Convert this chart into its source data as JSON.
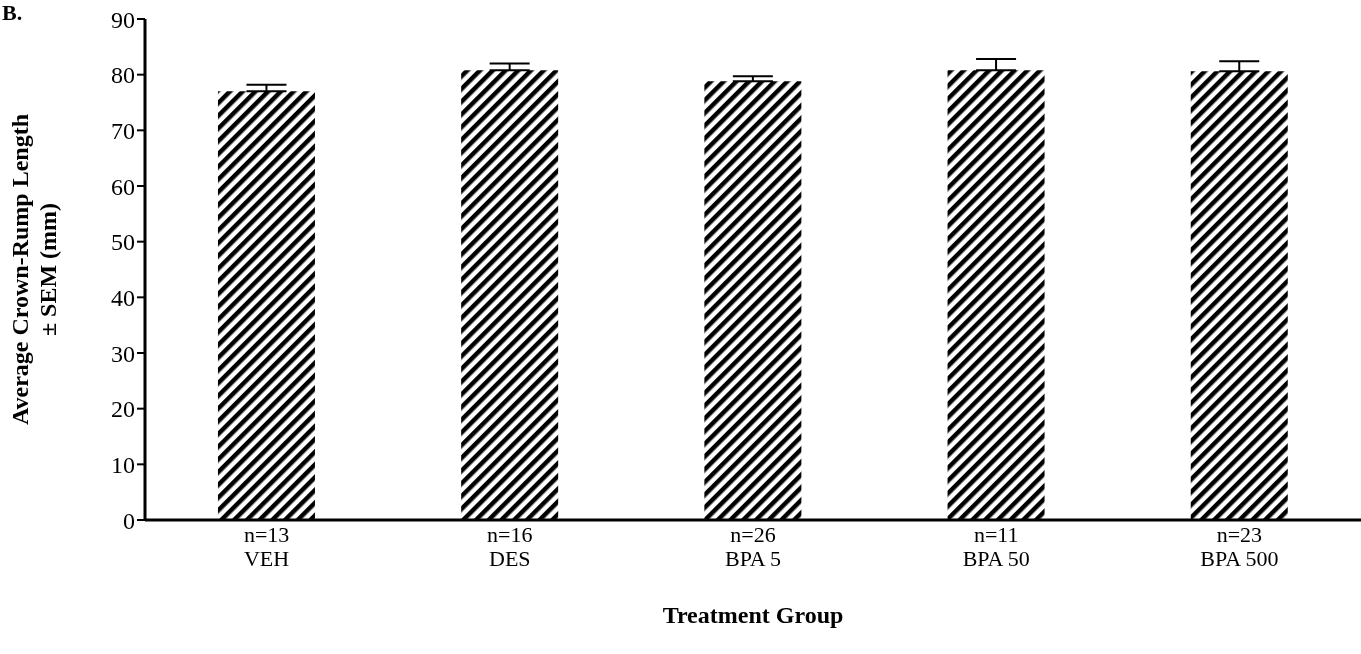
{
  "chart_data": {
    "type": "bar",
    "categories": [
      "n=13\nVEH",
      "n=16\nDES",
      "n=26\nBPA 5",
      "n=11\nBPA 50",
      "n=23\nBPA 500"
    ],
    "values": [
      77.0,
      80.8,
      78.8,
      80.8,
      80.6
    ],
    "errors": [
      [
        77.0,
        78.2
      ],
      [
        80.8,
        82.0
      ],
      [
        78.8,
        79.7
      ],
      [
        80.8,
        82.8
      ],
      [
        80.6,
        82.4
      ]
    ],
    "color": "#000000",
    "xlabel": "Treatment Group",
    "ylabel": "Average Crown-Rump Length\n± SEM (mm)",
    "ylim": [
      0,
      90
    ],
    "yticks": [
      0,
      10,
      20,
      30,
      40,
      50,
      60,
      70,
      80,
      90
    ],
    "annotations": [
      "B."
    ],
    "grid": false
  }
}
